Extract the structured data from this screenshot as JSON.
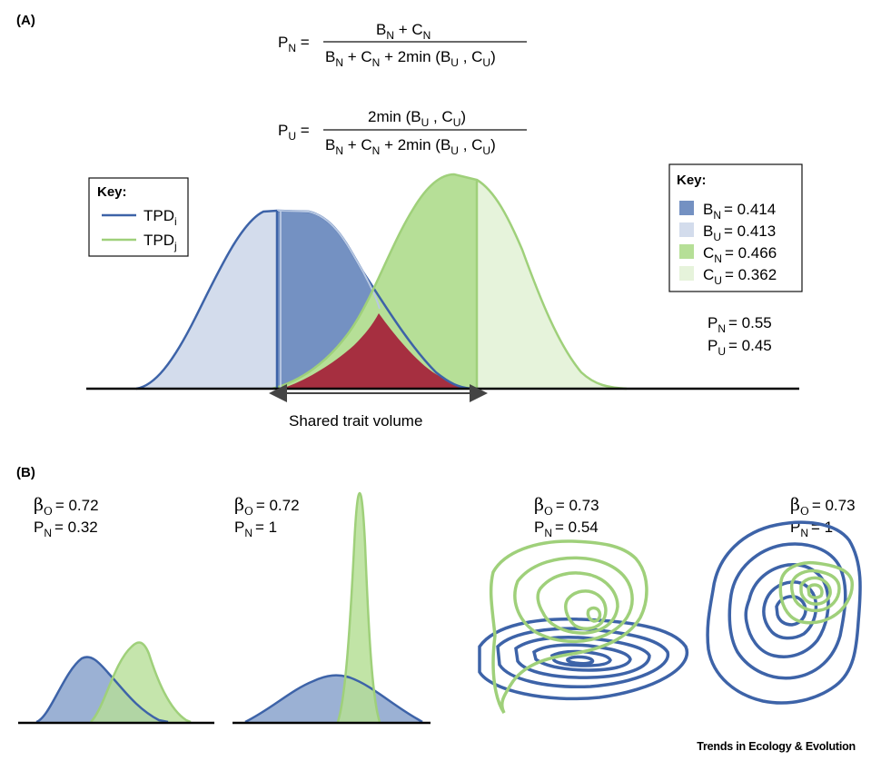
{
  "panel_a": {
    "label": "(A)",
    "formula_pn": {
      "lhs": "P",
      "lhs_sub": "N",
      "numerator": "B_N + C_N",
      "denominator": "B_N + C_N + 2min (B_U , C_U)"
    },
    "formula_pu": {
      "lhs": "P",
      "lhs_sub": "U",
      "numerator": "2min (B_U , C_U)",
      "denominator": "B_N + C_N + 2min (B_U , C_U)"
    },
    "left_key": {
      "title": "Key:",
      "items": [
        {
          "label": "TPD",
          "sub": "i",
          "color": "#3d63a8"
        },
        {
          "label": "TPD",
          "sub": "j",
          "color": "#9fd07a"
        }
      ]
    },
    "right_key": {
      "title": "Key:",
      "items": [
        {
          "label": "B",
          "sub": "N",
          "value": "= 0.414",
          "color": "#7491c2"
        },
        {
          "label": "B",
          "sub": "U",
          "value": "= 0.413",
          "color": "#d3dcec"
        },
        {
          "label": "C",
          "sub": "N",
          "value": "= 0.466",
          "color": "#b6df97"
        },
        {
          "label": "C",
          "sub": "U",
          "value": "= 0.362",
          "color": "#e6f3db"
        }
      ]
    },
    "results": [
      {
        "label": "P",
        "sub": "N",
        "value": "= 0.55"
      },
      {
        "label": "P",
        "sub": "U",
        "value": "= 0.45"
      }
    ],
    "axis_label": "Shared trait volume",
    "overlap_color": "#a62f40"
  },
  "panel_b": {
    "label": "(B)",
    "panels": [
      {
        "beta": "β",
        "beta_sub": "O",
        "beta_value": "= 0.72",
        "p": "P",
        "p_sub": "N",
        "p_value": "= 0.32"
      },
      {
        "beta": "β",
        "beta_sub": "O",
        "beta_value": "= 0.72",
        "p": "P",
        "p_sub": "N",
        "p_value": "= 1"
      },
      {
        "beta": "β",
        "beta_sub": "O",
        "beta_value": "= 0.73",
        "p": "P",
        "p_sub": "N",
        "p_value": "= 0.54"
      },
      {
        "beta": "β",
        "beta_sub": "O",
        "beta_value": "= 0.73",
        "p": "P",
        "p_sub": "N",
        "p_value": "= 1"
      }
    ]
  },
  "credit": "Trends in Ecology & Evolution",
  "colors": {
    "blue": "#3d63a8",
    "green": "#9fd07a"
  }
}
